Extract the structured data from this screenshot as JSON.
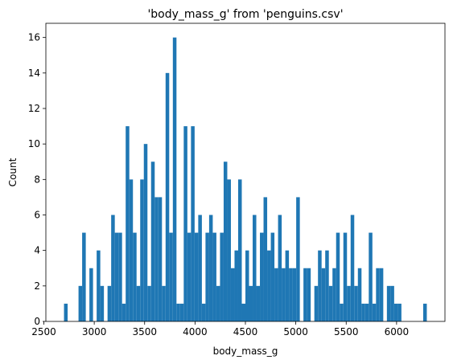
{
  "chart_data": {
    "type": "bar",
    "title": "'body_mass_g' from 'penguins.csv'",
    "xlabel": "body_mass_g",
    "ylabel": "Count",
    "bin_width": 36,
    "xlim": [
      2520,
      6480
    ],
    "ylim": [
      0,
      16.8
    ],
    "xticks": [
      2500,
      3000,
      3500,
      4000,
      4500,
      5000,
      5500,
      6000
    ],
    "yticks": [
      0,
      2,
      4,
      6,
      8,
      10,
      12,
      14,
      16
    ],
    "bins": [
      [
        2700,
        1
      ],
      [
        2844,
        2
      ],
      [
        2880,
        5
      ],
      [
        2952,
        3
      ],
      [
        3024,
        4
      ],
      [
        3060,
        2
      ],
      [
        3132,
        2
      ],
      [
        3168,
        6
      ],
      [
        3204,
        5
      ],
      [
        3240,
        5
      ],
      [
        3276,
        1
      ],
      [
        3312,
        11
      ],
      [
        3348,
        8
      ],
      [
        3384,
        5
      ],
      [
        3420,
        2
      ],
      [
        3456,
        8
      ],
      [
        3492,
        10
      ],
      [
        3528,
        2
      ],
      [
        3564,
        9
      ],
      [
        3600,
        7
      ],
      [
        3636,
        7
      ],
      [
        3672,
        2
      ],
      [
        3708,
        14
      ],
      [
        3744,
        5
      ],
      [
        3780,
        16
      ],
      [
        3816,
        1
      ],
      [
        3852,
        1
      ],
      [
        3888,
        11
      ],
      [
        3924,
        5
      ],
      [
        3960,
        11
      ],
      [
        3996,
        5
      ],
      [
        4032,
        6
      ],
      [
        4068,
        1
      ],
      [
        4104,
        5
      ],
      [
        4140,
        6
      ],
      [
        4176,
        5
      ],
      [
        4212,
        2
      ],
      [
        4248,
        5
      ],
      [
        4284,
        9
      ],
      [
        4320,
        8
      ],
      [
        4356,
        3
      ],
      [
        4392,
        4
      ],
      [
        4428,
        8
      ],
      [
        4464,
        1
      ],
      [
        4500,
        4
      ],
      [
        4536,
        2
      ],
      [
        4572,
        6
      ],
      [
        4608,
        2
      ],
      [
        4644,
        5
      ],
      [
        4680,
        7
      ],
      [
        4716,
        4
      ],
      [
        4752,
        5
      ],
      [
        4788,
        3
      ],
      [
        4824,
        6
      ],
      [
        4860,
        3
      ],
      [
        4896,
        4
      ],
      [
        4932,
        3
      ],
      [
        4968,
        3
      ],
      [
        5004,
        7
      ],
      [
        5076,
        3
      ],
      [
        5112,
        3
      ],
      [
        5184,
        2
      ],
      [
        5220,
        4
      ],
      [
        5256,
        3
      ],
      [
        5292,
        4
      ],
      [
        5328,
        2
      ],
      [
        5364,
        3
      ],
      [
        5400,
        5
      ],
      [
        5436,
        1
      ],
      [
        5472,
        5
      ],
      [
        5508,
        2
      ],
      [
        5544,
        6
      ],
      [
        5580,
        2
      ],
      [
        5616,
        3
      ],
      [
        5652,
        1
      ],
      [
        5688,
        1
      ],
      [
        5724,
        5
      ],
      [
        5760,
        1
      ],
      [
        5796,
        3
      ],
      [
        5832,
        3
      ],
      [
        5904,
        2
      ],
      [
        5940,
        2
      ],
      [
        5976,
        1
      ],
      [
        6012,
        1
      ],
      [
        6264,
        1
      ]
    ]
  }
}
